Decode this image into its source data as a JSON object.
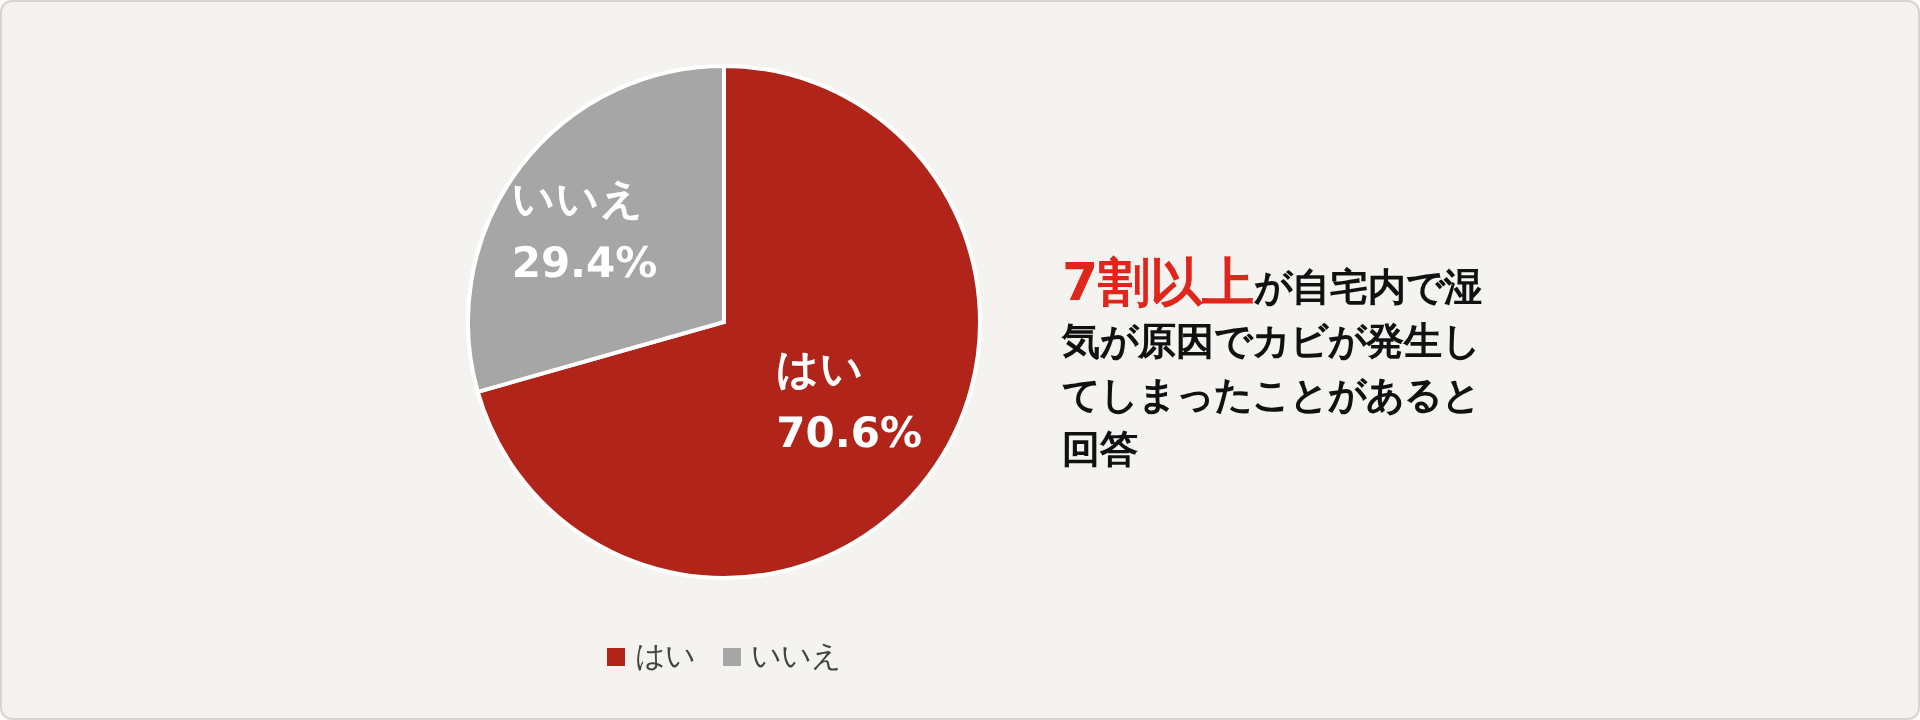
{
  "chart_data": {
    "type": "pie",
    "categories": [
      "はい",
      "いいえ"
    ],
    "values": [
      70.6,
      29.4
    ],
    "colors": [
      "#b0241a",
      "#a6a6a6"
    ],
    "value_labels": [
      "70.6%",
      "29.4%"
    ],
    "legend": "bottom",
    "annotations": [
      "7割以上",
      "が自宅内で湿気が原因でカビが発生してしまったことがあると回答"
    ]
  }
}
